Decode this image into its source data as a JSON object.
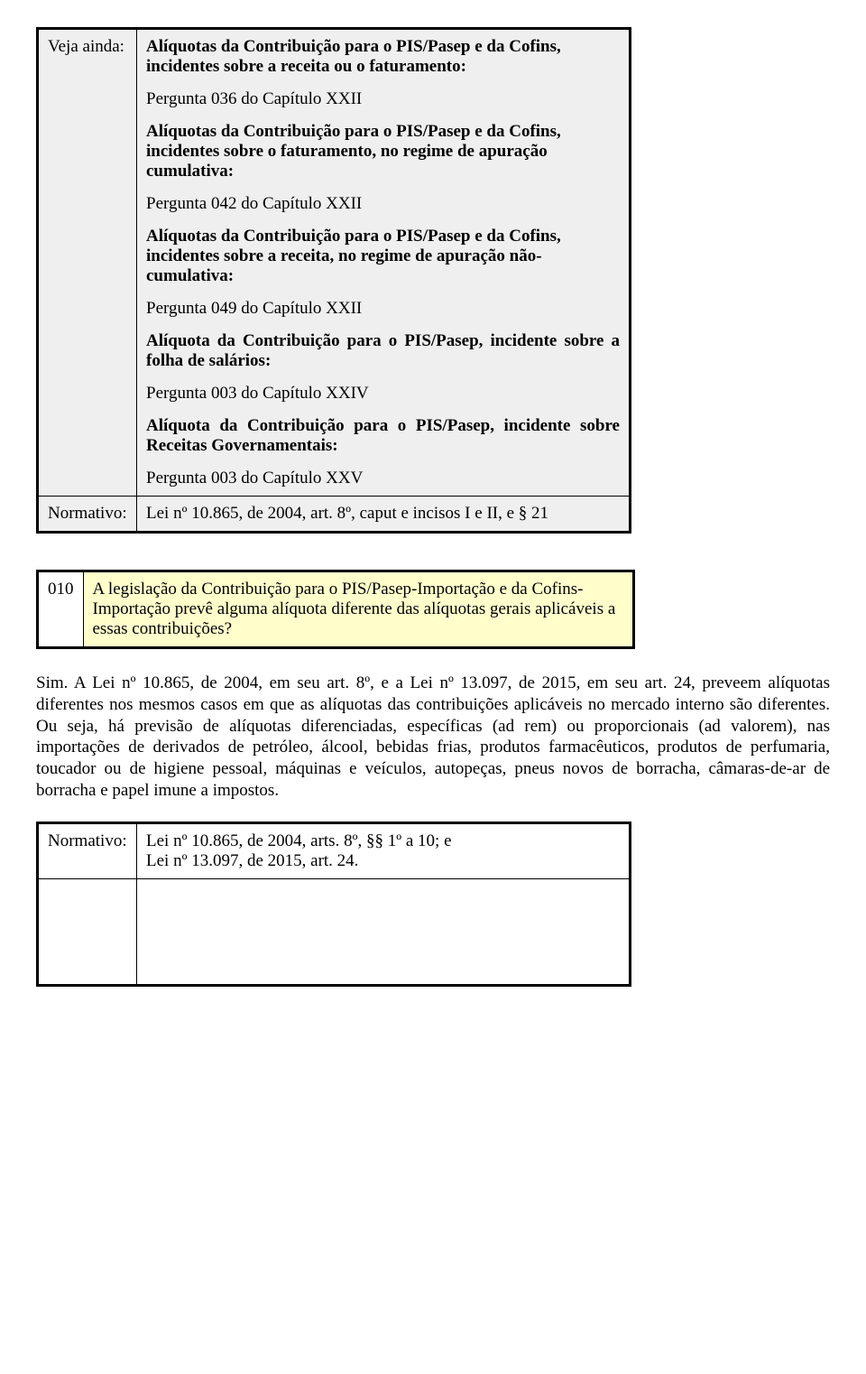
{
  "colors": {
    "page_bg": "#ffffff",
    "table_bg_gray": "#efefef",
    "table_bg_yellow": "#ffffcc",
    "border": "#000000",
    "text": "#000000"
  },
  "typography": {
    "family": "Times New Roman",
    "body_size_pt": 14
  },
  "veja_block": {
    "label": "Veja ainda:",
    "paragraphs": [
      {
        "text": "Alíquotas da Contribuição para o PIS/Pasep e da Cofins, incidentes sobre a receita ou o faturamento:",
        "bold": true
      },
      {
        "text": "Pergunta 036 do Capítulo XXII",
        "bold": false
      },
      {
        "text": "Alíquotas da Contribuição para o PIS/Pasep e da Cofins, incidentes sobre o faturamento, no regime de apuração cumulativa:",
        "bold": true
      },
      {
        "text": "Pergunta 042 do Capítulo XXII",
        "bold": false
      },
      {
        "text": "Alíquotas da Contribuição para o PIS/Pasep e da Cofins, incidentes sobre a receita, no regime de apuração não-cumulativa:",
        "bold": true
      },
      {
        "text": "Pergunta 049 do Capítulo XXII",
        "bold": false
      },
      {
        "text": "Alíquota da Contribuição para o PIS/Pasep, incidente sobre a folha de salários:",
        "bold": true,
        "justify": true
      },
      {
        "text": "Pergunta 003 do Capítulo XXIV",
        "bold": false
      },
      {
        "text": "Alíquota da Contribuição para o PIS/Pasep, incidente sobre Receitas Governamentais:",
        "bold": true,
        "justify": true
      },
      {
        "text": "Pergunta 003 do Capítulo XXV",
        "bold": false
      }
    ]
  },
  "normativo1": {
    "label": "Normativo:",
    "text": "Lei nº 10.865, de 2004, art. 8º, caput e incisos I e II, e § 21"
  },
  "question": {
    "number": "010",
    "text": "A legislação da Contribuição para o PIS/Pasep-Importação e da Cofins-Importação prevê alguma alíquota diferente das alíquotas gerais aplicáveis a essas contribuições?"
  },
  "answer": "Sim. A Lei nº 10.865, de 2004, em seu art. 8º, e a Lei nº 13.097, de 2015, em seu art. 24, preveem alíquotas diferentes nos mesmos casos em que as alíquotas das contribuições aplicáveis no mercado interno são diferentes. Ou seja, há previsão de alíquotas diferenciadas, específicas (ad rem) ou proporcionais (ad valorem), nas importações de derivados de petróleo, álcool, bebidas frias, produtos farmacêuticos, produtos de perfumaria, toucador ou de higiene pessoal, máquinas e veículos, autopeças, pneus novos de borracha, câmaras-de-ar de borracha e papel imune a impostos.",
  "normativo2": {
    "label": "Normativo:",
    "line1": "Lei nº 10.865, de 2004, arts. 8º, §§ 1º a 10; e",
    "line2": "Lei nº 13.097, de 2015, art. 24."
  }
}
